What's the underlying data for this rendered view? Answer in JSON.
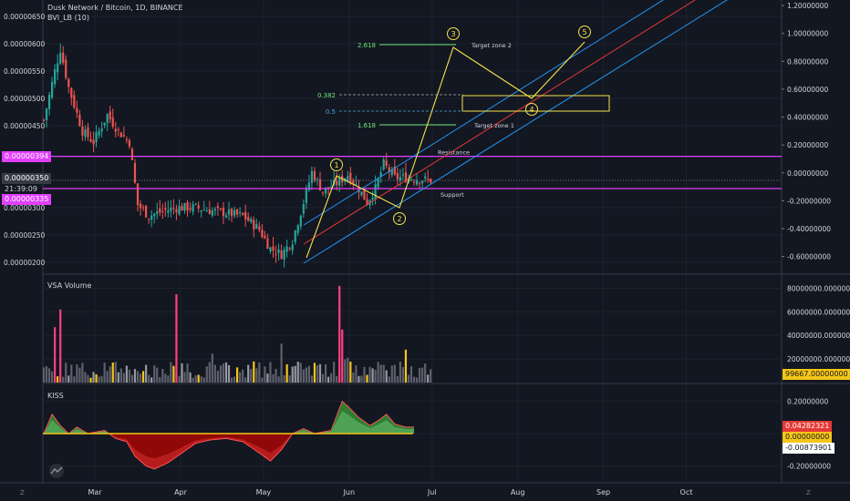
{
  "header": {
    "title": "Dusk Network / Bitcoin, 1D, BINANCE",
    "indicator": "BVI_LB (10)"
  },
  "colors": {
    "background": "#131722",
    "grid": "#1e222d",
    "up": "#26a69a",
    "down": "#ef5350",
    "magenta": "#e040fb",
    "yellow": "#f5e44a",
    "green": "#6be675",
    "blue": "#2196f3",
    "red": "#e53935",
    "fib_blue": "#4aa8d8"
  },
  "chart_data": [
    {
      "type": "candlestick",
      "name": "price",
      "y_ticks": [
        "0.00000650",
        "0.00000600",
        "0.00000550",
        "0.00000500",
        "0.00000450",
        "0.00000350",
        "0.00000300",
        "0.00000250",
        "0.00000200"
      ],
      "y_range": [
        1.8e-06,
        6.8e-06
      ],
      "right_ticks": [
        "1.20000000",
        "1.00000000",
        "0.80000000",
        "0.60000000",
        "0.40000000",
        "0.20000000",
        "0.00000000",
        "-0.20000000",
        "-0.40000000",
        "-0.60000000"
      ],
      "right_range": [
        -0.72,
        1.24
      ],
      "x_ticks": [
        {
          "label": "Mar",
          "day": 20
        },
        {
          "label": "Apr",
          "day": 51
        },
        {
          "label": "May",
          "day": 81
        },
        {
          "label": "Jun",
          "day": 112
        },
        {
          "label": "Jul",
          "day": 142
        },
        {
          "label": "Aug",
          "day": 173
        },
        {
          "label": "Sep",
          "day": 204
        },
        {
          "label": "Oct",
          "day": 234
        }
      ],
      "horizontal_lines": [
        {
          "label": "Resistance",
          "value": 3.94e-06
        },
        {
          "label": "Support",
          "value": 3.35e-06
        }
      ],
      "price_tags": {
        "resistance": "0.00000394",
        "current": "0.00000350",
        "countdown": "21:39:09",
        "support": "0.00000335"
      },
      "wave_labels": [
        "1",
        "2",
        "3",
        "4",
        "5"
      ],
      "annotations": [
        "Target zone 2",
        "Target zone 1"
      ],
      "fib_levels": [
        {
          "label": "2.618",
          "value": 6.1e-06
        },
        {
          "label": "0.382",
          "value": 5.3e-06
        },
        {
          "label": "0.5",
          "value": 4.9e-06
        },
        {
          "label": "1.618",
          "value": 4.6e-06
        }
      ]
    },
    {
      "type": "bar",
      "name": "VSA Volume",
      "y_ticks": [
        "80000000.00000000",
        "60000000.00000000",
        "40000000.00000000",
        "20000000.00000000"
      ],
      "y_range": [
        0,
        85000000
      ],
      "last_value": "99667.00000000"
    },
    {
      "type": "area",
      "name": "KISS",
      "y_ticks": [
        "0.20000000",
        "0.00000000",
        "-0.20000000"
      ],
      "y_range": [
        -0.26,
        0.26
      ],
      "value_tags": [
        "0.04282321",
        "0.00000000",
        "-0.00873901"
      ]
    }
  ],
  "footer": {
    "left_button": "Z",
    "right_button": "Z"
  }
}
